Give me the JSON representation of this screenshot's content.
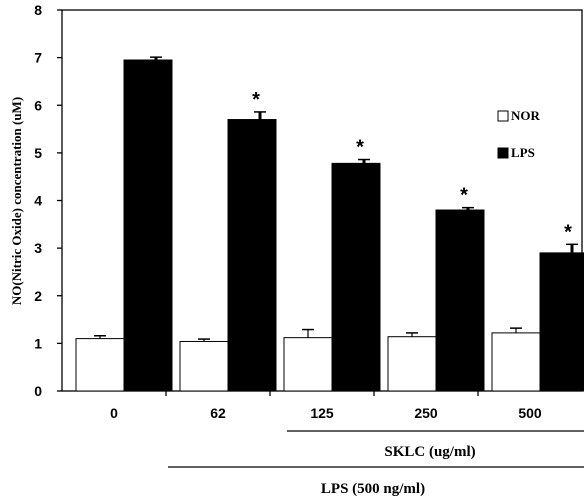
{
  "chart_data": {
    "type": "bar",
    "title": "",
    "xlabel": "",
    "ylabel": "NO(Nitric Oxide) concentration (uM)",
    "ylim": [
      0,
      8
    ],
    "yticks": [
      "0",
      "1",
      "2",
      "3",
      "4",
      "5",
      "6",
      "7",
      "8"
    ],
    "categories": [
      "0",
      "62",
      "125",
      "250",
      "500"
    ],
    "series": [
      {
        "name": "NOR",
        "color": "#ffffff",
        "values": [
          1.1,
          1.04,
          1.12,
          1.14,
          1.22
        ],
        "errors": [
          0.06,
          0.05,
          0.17,
          0.08,
          0.1
        ]
      },
      {
        "name": "LPS",
        "color": "#000000",
        "values": [
          6.95,
          5.7,
          4.78,
          3.8,
          2.9
        ],
        "errors": [
          0.06,
          0.16,
          0.08,
          0.05,
          0.18
        ]
      }
    ],
    "significance": [
      "",
      "*",
      "*",
      "*",
      "*"
    ],
    "group_labels": [
      "SKLC (ug/ml)",
      "LPS (500 ng/ml)"
    ],
    "legend_position": "right"
  }
}
